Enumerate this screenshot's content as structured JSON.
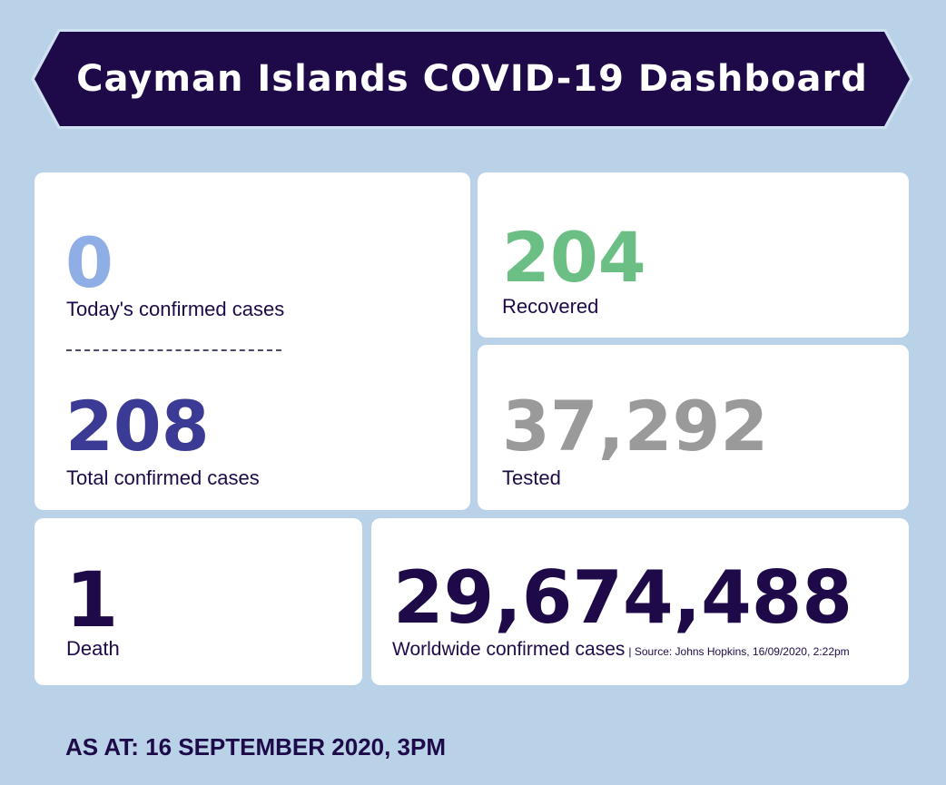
{
  "header": {
    "title": "Cayman Islands COVID-19 Dashboard"
  },
  "colors": {
    "background": "#b9d2e8",
    "banner": "#1e0a48",
    "today_cases": "#8faee6",
    "total_cases": "#3b3b96",
    "recovered": "#6bbf84",
    "tested": "#9a9a9a",
    "deaths": "#1e0a48",
    "worldwide": "#1e0a48"
  },
  "stats": {
    "today_cases": {
      "value": "0",
      "label": "Today's confirmed cases"
    },
    "total_cases": {
      "value": "208",
      "label": "Total confirmed cases"
    },
    "recovered": {
      "value": "204",
      "label": "Recovered"
    },
    "tested": {
      "value": "37,292",
      "label": "Tested"
    },
    "deaths": {
      "value": "1",
      "label": "Death"
    },
    "worldwide": {
      "value": "29,674,488",
      "label": "Worldwide confirmed cases",
      "source": "| Source: Johns Hopkins, 16/09/2020, 2:22pm"
    }
  },
  "footer": {
    "as_at": "AS AT: 16 SEPTEMBER 2020, 3PM"
  }
}
